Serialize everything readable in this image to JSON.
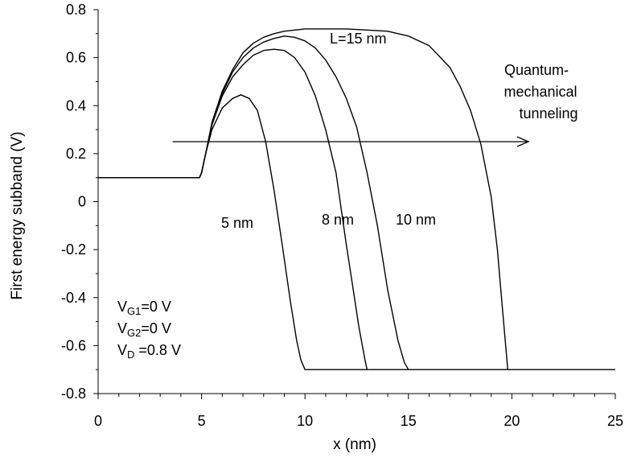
{
  "chart_data": {
    "type": "line",
    "xlabel": "x (nm)",
    "ylabel": "First energy subband (V)",
    "xlim": [
      0,
      25
    ],
    "ylim": [
      -0.8,
      0.8
    ],
    "x_ticks": [
      "0",
      "5",
      "10",
      "15",
      "20",
      "25"
    ],
    "y_ticks": [
      "0.8",
      "0.6",
      "0.4",
      "0.2",
      "0",
      "-0.2",
      "-0.4",
      "-0.6",
      "-0.8"
    ],
    "grid": false,
    "series": [
      {
        "name": "5 nm",
        "x": [
          0,
          4.9,
          5.0,
          5.2,
          5.5,
          6.0,
          6.5,
          6.9,
          7.3,
          7.7,
          8.1,
          8.5,
          8.9,
          9.3,
          9.6,
          9.8,
          10.0,
          25
        ],
        "y": [
          0.1,
          0.1,
          0.12,
          0.2,
          0.3,
          0.39,
          0.43,
          0.445,
          0.43,
          0.38,
          0.25,
          0.05,
          -0.18,
          -0.42,
          -0.58,
          -0.66,
          -0.7,
          -0.7
        ]
      },
      {
        "name": "8 nm",
        "x": [
          0,
          4.9,
          5.0,
          5.2,
          5.5,
          6.0,
          6.5,
          7.0,
          7.5,
          8.0,
          8.5,
          9.0,
          9.5,
          10.0,
          10.5,
          11.0,
          11.5,
          12.0,
          12.3,
          12.6,
          12.9,
          13.0
        ],
        "y": [
          0.1,
          0.1,
          0.12,
          0.2,
          0.32,
          0.44,
          0.52,
          0.57,
          0.61,
          0.63,
          0.635,
          0.63,
          0.6,
          0.54,
          0.44,
          0.3,
          0.12,
          -0.18,
          -0.35,
          -0.52,
          -0.66,
          -0.7
        ]
      },
      {
        "name": "10 nm",
        "x": [
          0,
          4.9,
          5.0,
          5.2,
          5.5,
          6.0,
          6.5,
          7.0,
          7.5,
          8.0,
          8.5,
          9.0,
          9.5,
          10.0,
          10.5,
          11.0,
          11.5,
          12.0,
          12.5,
          13.0,
          13.5,
          14.0,
          14.5,
          14.8,
          15.0
        ],
        "y": [
          0.1,
          0.1,
          0.12,
          0.2,
          0.32,
          0.45,
          0.54,
          0.6,
          0.64,
          0.665,
          0.68,
          0.69,
          0.685,
          0.67,
          0.64,
          0.59,
          0.52,
          0.43,
          0.31,
          0.12,
          -0.1,
          -0.37,
          -0.58,
          -0.67,
          -0.7
        ]
      },
      {
        "name": "L=15 nm",
        "x": [
          0,
          4.9,
          5.0,
          5.2,
          5.5,
          6.0,
          6.5,
          7.0,
          7.5,
          8.0,
          8.5,
          9.0,
          10.0,
          11.0,
          12.0,
          13.0,
          14.0,
          15.0,
          16.0,
          17.0,
          17.5,
          18.0,
          18.5,
          19.0,
          19.3,
          19.5,
          19.7,
          19.8
        ],
        "y": [
          0.1,
          0.1,
          0.12,
          0.2,
          0.33,
          0.46,
          0.55,
          0.62,
          0.66,
          0.685,
          0.7,
          0.71,
          0.72,
          0.72,
          0.72,
          0.715,
          0.71,
          0.69,
          0.65,
          0.56,
          0.48,
          0.38,
          0.24,
          0.02,
          -0.2,
          -0.4,
          -0.6,
          -0.7
        ]
      }
    ],
    "annotations": {
      "label_15": "L=15 nm",
      "label_5": "5 nm",
      "label_8": "8 nm",
      "label_10": "10 nm",
      "tunneling_line1": "Quantum-",
      "tunneling_line2": "mechanical",
      "tunneling_line3": "tunneling",
      "tunneling_arrow": {
        "x_start": 3.6,
        "x_end": 20.8,
        "y": 0.25
      },
      "conditions": [
        {
          "base": "V",
          "sub": "G1",
          "rest": "=0 V"
        },
        {
          "base": "V",
          "sub": "G2",
          "rest": "=0 V"
        },
        {
          "base": "V",
          "sub": "D",
          "rest": " =0.8 V"
        }
      ]
    }
  }
}
